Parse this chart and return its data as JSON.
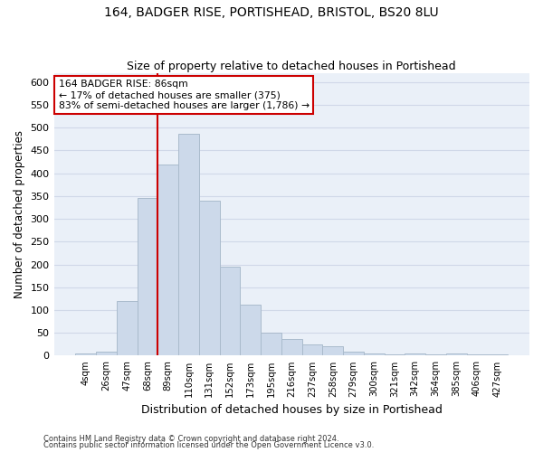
{
  "title": "164, BADGER RISE, PORTISHEAD, BRISTOL, BS20 8LU",
  "subtitle": "Size of property relative to detached houses in Portishead",
  "xlabel": "Distribution of detached houses by size in Portishead",
  "ylabel": "Number of detached properties",
  "bar_color": "#ccd9ea",
  "bar_edge_color": "#aabbcc",
  "categories": [
    "4sqm",
    "26sqm",
    "47sqm",
    "68sqm",
    "89sqm",
    "110sqm",
    "131sqm",
    "152sqm",
    "173sqm",
    "195sqm",
    "216sqm",
    "237sqm",
    "258sqm",
    "279sqm",
    "300sqm",
    "321sqm",
    "342sqm",
    "364sqm",
    "385sqm",
    "406sqm",
    "427sqm"
  ],
  "values": [
    5,
    8,
    120,
    345,
    420,
    487,
    340,
    195,
    112,
    50,
    36,
    25,
    20,
    8,
    4,
    2,
    5,
    2,
    5,
    2,
    3
  ],
  "marker_index": 4,
  "annotation_line1": "164 BADGER RISE: 86sqm",
  "annotation_line2": "← 17% of detached houses are smaller (375)",
  "annotation_line3": "83% of semi-detached houses are larger (1,786) →",
  "vline_color": "#cc0000",
  "annotation_box_edge_color": "#cc0000",
  "ylim": [
    0,
    620
  ],
  "yticks": [
    0,
    50,
    100,
    150,
    200,
    250,
    300,
    350,
    400,
    450,
    500,
    550,
    600
  ],
  "grid_color": "#d0d8e8",
  "background_color": "#eaf0f8",
  "footnote1": "Contains HM Land Registry data © Crown copyright and database right 2024.",
  "footnote2": "Contains public sector information licensed under the Open Government Licence v3.0."
}
